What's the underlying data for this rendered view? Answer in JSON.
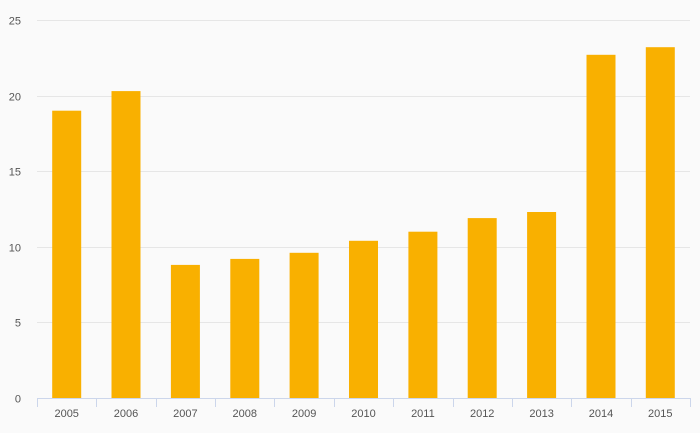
{
  "chart_data": {
    "type": "bar",
    "title": "",
    "xlabel": "",
    "ylabel": "",
    "categories": [
      "2005",
      "2006",
      "2007",
      "2008",
      "2009",
      "2010",
      "2011",
      "2012",
      "2013",
      "2014",
      "2015"
    ],
    "values": [
      19.0,
      20.3,
      8.8,
      9.2,
      9.6,
      10.4,
      11.0,
      11.9,
      12.3,
      22.7,
      23.2
    ],
    "ylim": [
      0,
      25
    ],
    "yticks": [
      0,
      5,
      10,
      15,
      20,
      25
    ],
    "grid": true,
    "legend": "none",
    "bar_color": "#f9b000"
  }
}
